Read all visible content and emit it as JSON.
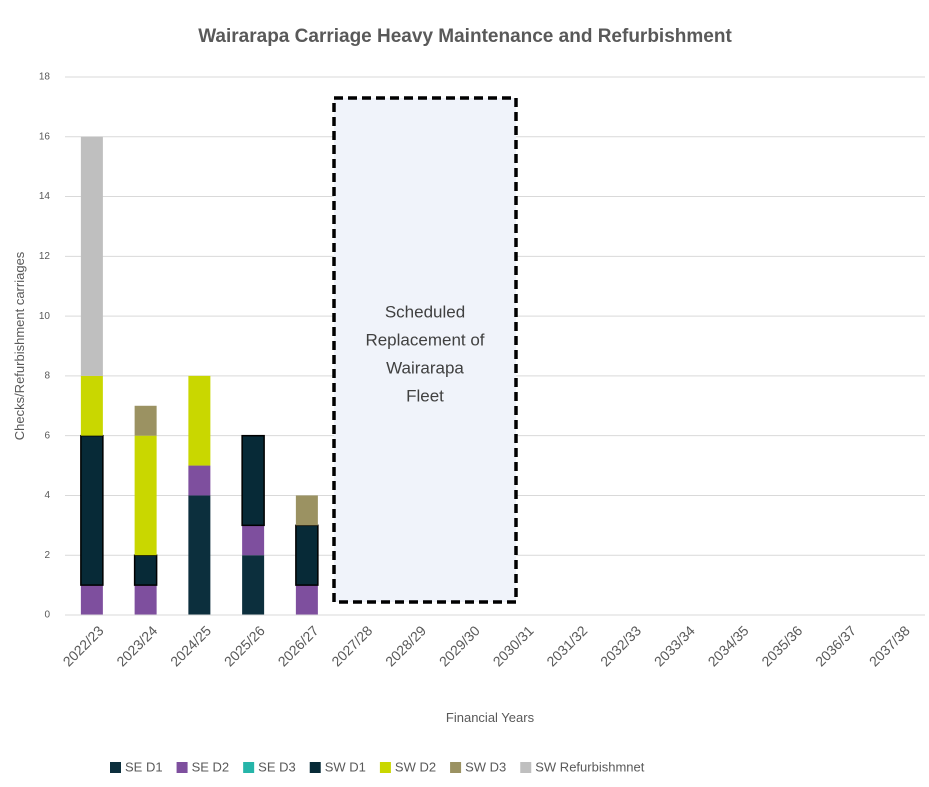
{
  "chart_data": {
    "type": "stacked_bar",
    "title": "Wairarapa Carriage Heavy Maintenance and Refurbishment",
    "x_label": "Financial Years",
    "y_label": "Checks/Refurbishment carriages",
    "annotation": [
      "Scheduled",
      "Replacement of",
      "Wairarapa",
      "Fleet"
    ],
    "categories": [
      "2022/23",
      "2023/24",
      "2024/25",
      "2025/26",
      "2026/27",
      "2027/28",
      "2028/29",
      "2029/30",
      "2030/31",
      "2031/32",
      "2032/33",
      "2033/34",
      "2034/35",
      "2035/36",
      "2036/37",
      "2037/38"
    ],
    "series": [
      {
        "name": "SE D1",
        "color": "#0c2f3d",
        "values": [
          0,
          0,
          4,
          2,
          0,
          null,
          null,
          null,
          null,
          null,
          null,
          null,
          null,
          null,
          null,
          null
        ]
      },
      {
        "name": "SE D2",
        "color": "#7e4f9e",
        "values": [
          1,
          1,
          1,
          1,
          1,
          null,
          null,
          null,
          null,
          null,
          null,
          null,
          null,
          null,
          null,
          null
        ]
      },
      {
        "name": "SE D3",
        "color": "#26b5a9",
        "values": [
          0,
          0,
          0,
          0,
          0,
          null,
          null,
          null,
          null,
          null,
          null,
          null,
          null,
          null,
          null,
          null
        ]
      },
      {
        "name": "SW D1",
        "color": "#072a37",
        "values": [
          5,
          1,
          0,
          3,
          2,
          null,
          null,
          null,
          null,
          null,
          null,
          null,
          null,
          null,
          null,
          null
        ]
      },
      {
        "name": "SW D2",
        "color": "#c9d700",
        "values": [
          2,
          4,
          3,
          0,
          0,
          null,
          null,
          null,
          null,
          null,
          null,
          null,
          null,
          null,
          null,
          null
        ]
      },
      {
        "name": "SW D3",
        "color": "#9b9262",
        "values": [
          0,
          1,
          0,
          0,
          1,
          null,
          null,
          null,
          null,
          null,
          null,
          null,
          null,
          null,
          null,
          null
        ]
      },
      {
        "name": "SW Refurbishmnet",
        "color": "#bfbfbf",
        "values": [
          8,
          0,
          0,
          0,
          0,
          null,
          null,
          null,
          null,
          null,
          null,
          null,
          null,
          null,
          null,
          null
        ]
      }
    ],
    "ylim": [
      0,
      18
    ],
    "yticks": [
      0,
      2,
      4,
      6,
      8,
      10,
      12,
      14,
      16,
      18
    ],
    "grid": true
  }
}
